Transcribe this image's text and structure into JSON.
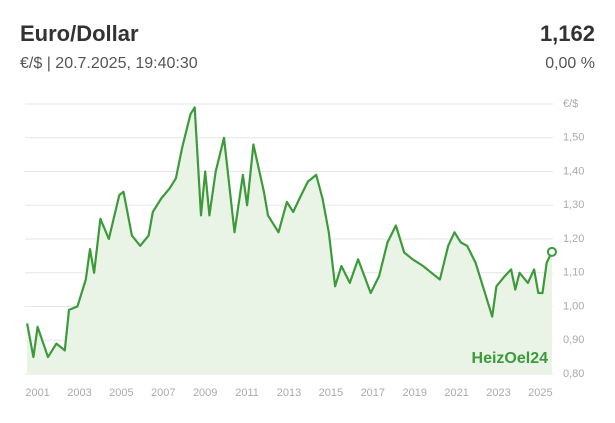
{
  "chart_data": {
    "type": "line",
    "title": "Euro/Dollar",
    "subtitle": "€/$ | 20.7.2025, 19:40:30",
    "current_value": "1,162",
    "change": "0,00 %",
    "y_unit": "€/$",
    "watermark": "HeizOel24",
    "x": [
      2000.5,
      2000.8,
      2001.0,
      2001.5,
      2001.9,
      2002.3,
      2002.5,
      2002.9,
      2003.3,
      2003.5,
      2003.7,
      2004.0,
      2004.4,
      2004.9,
      2005.1,
      2005.5,
      2005.9,
      2006.3,
      2006.5,
      2006.9,
      2007.3,
      2007.6,
      2007.9,
      2008.3,
      2008.5,
      2008.8,
      2009.0,
      2009.2,
      2009.5,
      2009.9,
      2010.4,
      2010.8,
      2011.0,
      2011.3,
      2011.8,
      2012.0,
      2012.5,
      2012.9,
      2013.2,
      2013.5,
      2013.9,
      2014.3,
      2014.6,
      2014.9,
      2015.2,
      2015.5,
      2015.9,
      2016.3,
      2016.9,
      2017.3,
      2017.7,
      2018.1,
      2018.5,
      2018.9,
      2019.4,
      2019.8,
      2020.2,
      2020.6,
      2020.9,
      2021.2,
      2021.5,
      2021.9,
      2022.3,
      2022.7,
      2022.9,
      2023.3,
      2023.6,
      2023.8,
      2024.0,
      2024.4,
      2024.7,
      2024.9,
      2025.1,
      2025.3,
      2025.55
    ],
    "series": [
      {
        "name": "Euro/Dollar",
        "color": "#3d9a3a",
        "values": [
          0.95,
          0.85,
          0.94,
          0.85,
          0.89,
          0.87,
          0.99,
          1.0,
          1.08,
          1.17,
          1.1,
          1.26,
          1.2,
          1.33,
          1.34,
          1.21,
          1.18,
          1.21,
          1.28,
          1.32,
          1.35,
          1.38,
          1.47,
          1.57,
          1.59,
          1.27,
          1.4,
          1.27,
          1.4,
          1.5,
          1.22,
          1.39,
          1.3,
          1.48,
          1.34,
          1.27,
          1.22,
          1.31,
          1.28,
          1.32,
          1.37,
          1.39,
          1.32,
          1.22,
          1.06,
          1.12,
          1.07,
          1.14,
          1.04,
          1.09,
          1.19,
          1.24,
          1.16,
          1.14,
          1.12,
          1.1,
          1.08,
          1.18,
          1.22,
          1.19,
          1.18,
          1.13,
          1.05,
          0.97,
          1.06,
          1.09,
          1.11,
          1.05,
          1.1,
          1.07,
          1.11,
          1.04,
          1.04,
          1.13,
          1.162
        ]
      }
    ],
    "area_color": "#e9f4e6",
    "xlim": [
      2000.4,
      2025.6
    ],
    "ylim": [
      0.8,
      1.6
    ],
    "xticks": [
      2001,
      2003,
      2005,
      2007,
      2009,
      2011,
      2013,
      2015,
      2017,
      2019,
      2021,
      2023,
      2025
    ],
    "yticks": [
      {
        "value": 0.8,
        "label": "0,80"
      },
      {
        "value": 0.9,
        "label": "0,90"
      },
      {
        "value": 1.0,
        "label": "1,00"
      },
      {
        "value": 1.1,
        "label": "1,10"
      },
      {
        "value": 1.2,
        "label": "1,20"
      },
      {
        "value": 1.3,
        "label": "1,30"
      },
      {
        "value": 1.4,
        "label": "1,40"
      },
      {
        "value": 1.5,
        "label": "1,50"
      }
    ],
    "grid": true
  }
}
